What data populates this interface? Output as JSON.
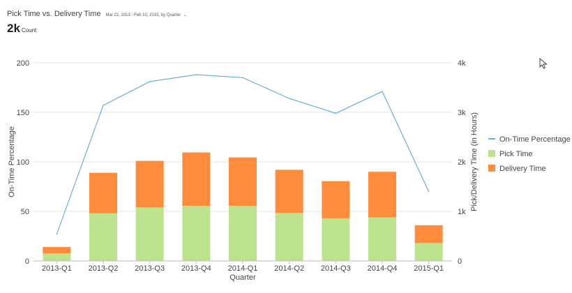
{
  "header": {
    "title": "Pick Time vs. Delivery Time",
    "date_range": "Mar 22, 2013 - Feb 10, 2015, by Quarter",
    "kpi_value": "2k",
    "kpi_unit": "Count"
  },
  "icons": {
    "date_range_chevron": "chevron-down-icon",
    "cursor": "mouse-pointer-icon"
  },
  "chart_data": {
    "type": "bar",
    "stacked": true,
    "categories": [
      "2013-Q1",
      "2013-Q2",
      "2013-Q3",
      "2013-Q4",
      "2014-Q1",
      "2014-Q2",
      "2014-Q3",
      "2014-Q4",
      "2015-Q1"
    ],
    "xlabel": "Quarter",
    "ylabel_left": "On-Time Percentage",
    "ylabel_right": "Pick/Delivery Time (in Hours)",
    "ylim_left": [
      0,
      200
    ],
    "yticks_left": [
      0,
      50,
      100,
      150,
      200
    ],
    "ylim_right": [
      0,
      4000
    ],
    "yticks_right": [
      0,
      1000,
      2000,
      3000,
      4000
    ],
    "ytick_labels_right": [
      "0",
      "1k",
      "2k",
      "3k",
      "4k"
    ],
    "grid": true,
    "legend_position": "right",
    "series": [
      {
        "name": "On-Time Percentage",
        "type": "line",
        "axis": "left",
        "color": "#6baed6",
        "values": [
          27,
          157,
          181,
          188,
          185,
          164,
          149,
          171,
          70
        ]
      },
      {
        "name": "Pick Time",
        "type": "bar",
        "axis": "right",
        "color": "#bde38f",
        "values": [
          150,
          960,
          1080,
          1110,
          1110,
          970,
          860,
          880,
          360
        ]
      },
      {
        "name": "Delivery Time",
        "type": "bar",
        "axis": "right",
        "color": "#fd8d3c",
        "values": [
          130,
          820,
          940,
          1080,
          980,
          870,
          750,
          920,
          360
        ]
      }
    ]
  }
}
